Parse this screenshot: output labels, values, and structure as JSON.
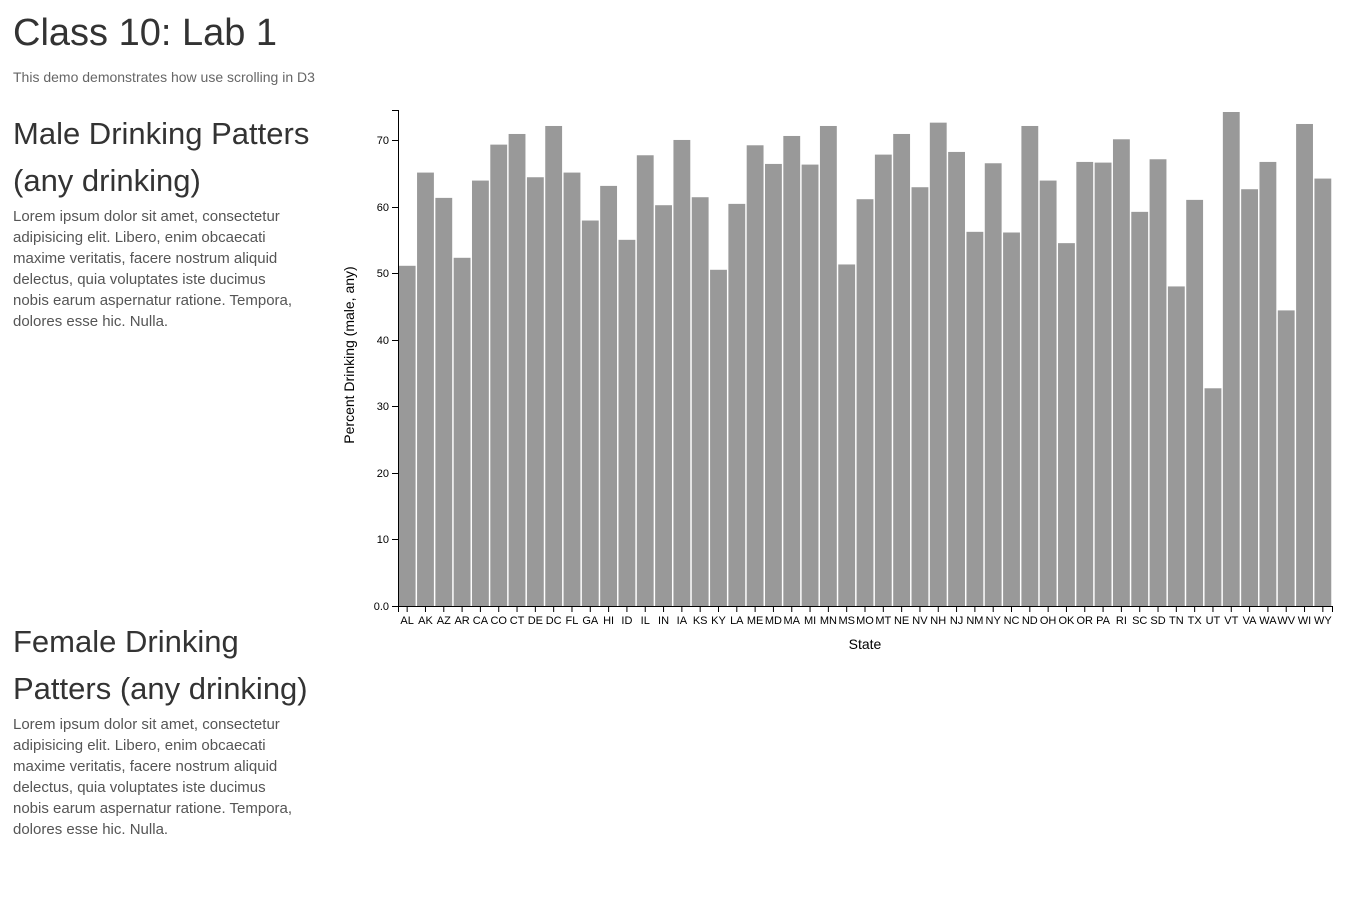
{
  "header": {
    "title": "Class 10: Lab 1",
    "subtitle": "This demo demonstrates how use scrolling in D3"
  },
  "sections": [
    {
      "heading": "Male Drinking Patters (any drinking)",
      "body": "Lorem ipsum dolor sit amet, consectetur adipisicing elit. Libero, enim obcaecati maxime veritatis, facere nostrum aliquid delectus, quia voluptates iste ducimus nobis earum aspernatur ratione. Tempora, dolores esse hic. Nulla."
    },
    {
      "heading": "Female Drinking Patters (any drinking)",
      "body": "Lorem ipsum dolor sit amet, consectetur adipisicing elit. Libero, enim obcaecati maxime veritatis, facere nostrum aliquid delectus, quia voluptates iste ducimus nobis earum aspernatur ratione. Tempora, dolores esse hic. Nulla."
    }
  ],
  "chart_data": {
    "type": "bar",
    "title": "",
    "xlabel": "State",
    "ylabel": "Percent Drinking (male, any)",
    "ylim": [
      0,
      74.5
    ],
    "yticks": [
      0,
      10,
      20,
      30,
      40,
      50,
      60,
      70
    ],
    "ytick_labels": [
      "0.0",
      "10",
      "20",
      "30",
      "40",
      "50",
      "60",
      "70"
    ],
    "bar_color": "#999999",
    "categories": [
      "AL",
      "AK",
      "AZ",
      "AR",
      "CA",
      "CO",
      "CT",
      "DE",
      "DC",
      "FL",
      "GA",
      "HI",
      "ID",
      "IL",
      "IN",
      "IA",
      "KS",
      "KY",
      "LA",
      "ME",
      "MD",
      "MA",
      "MI",
      "MN",
      "MS",
      "MO",
      "MT",
      "NE",
      "NV",
      "NH",
      "NJ",
      "NM",
      "NY",
      "NC",
      "ND",
      "OH",
      "OK",
      "OR",
      "PA",
      "RI",
      "SC",
      "SD",
      "TN",
      "TX",
      "UT",
      "VT",
      "VA",
      "WA",
      "WV",
      "WI",
      "WY"
    ],
    "values": [
      51.1,
      65.1,
      61.3,
      52.3,
      63.9,
      69.3,
      70.9,
      64.4,
      72.1,
      65.1,
      57.9,
      63.1,
      55.0,
      67.7,
      60.2,
      70.0,
      61.4,
      50.5,
      60.4,
      69.2,
      66.4,
      70.6,
      66.3,
      72.1,
      51.3,
      61.1,
      67.8,
      70.9,
      62.9,
      72.6,
      68.2,
      56.2,
      66.5,
      56.1,
      72.1,
      63.9,
      54.5,
      66.7,
      66.6,
      70.1,
      59.2,
      67.1,
      48.0,
      61.0,
      32.7,
      74.2,
      62.6,
      66.7,
      44.4,
      72.4,
      64.2
    ]
  }
}
